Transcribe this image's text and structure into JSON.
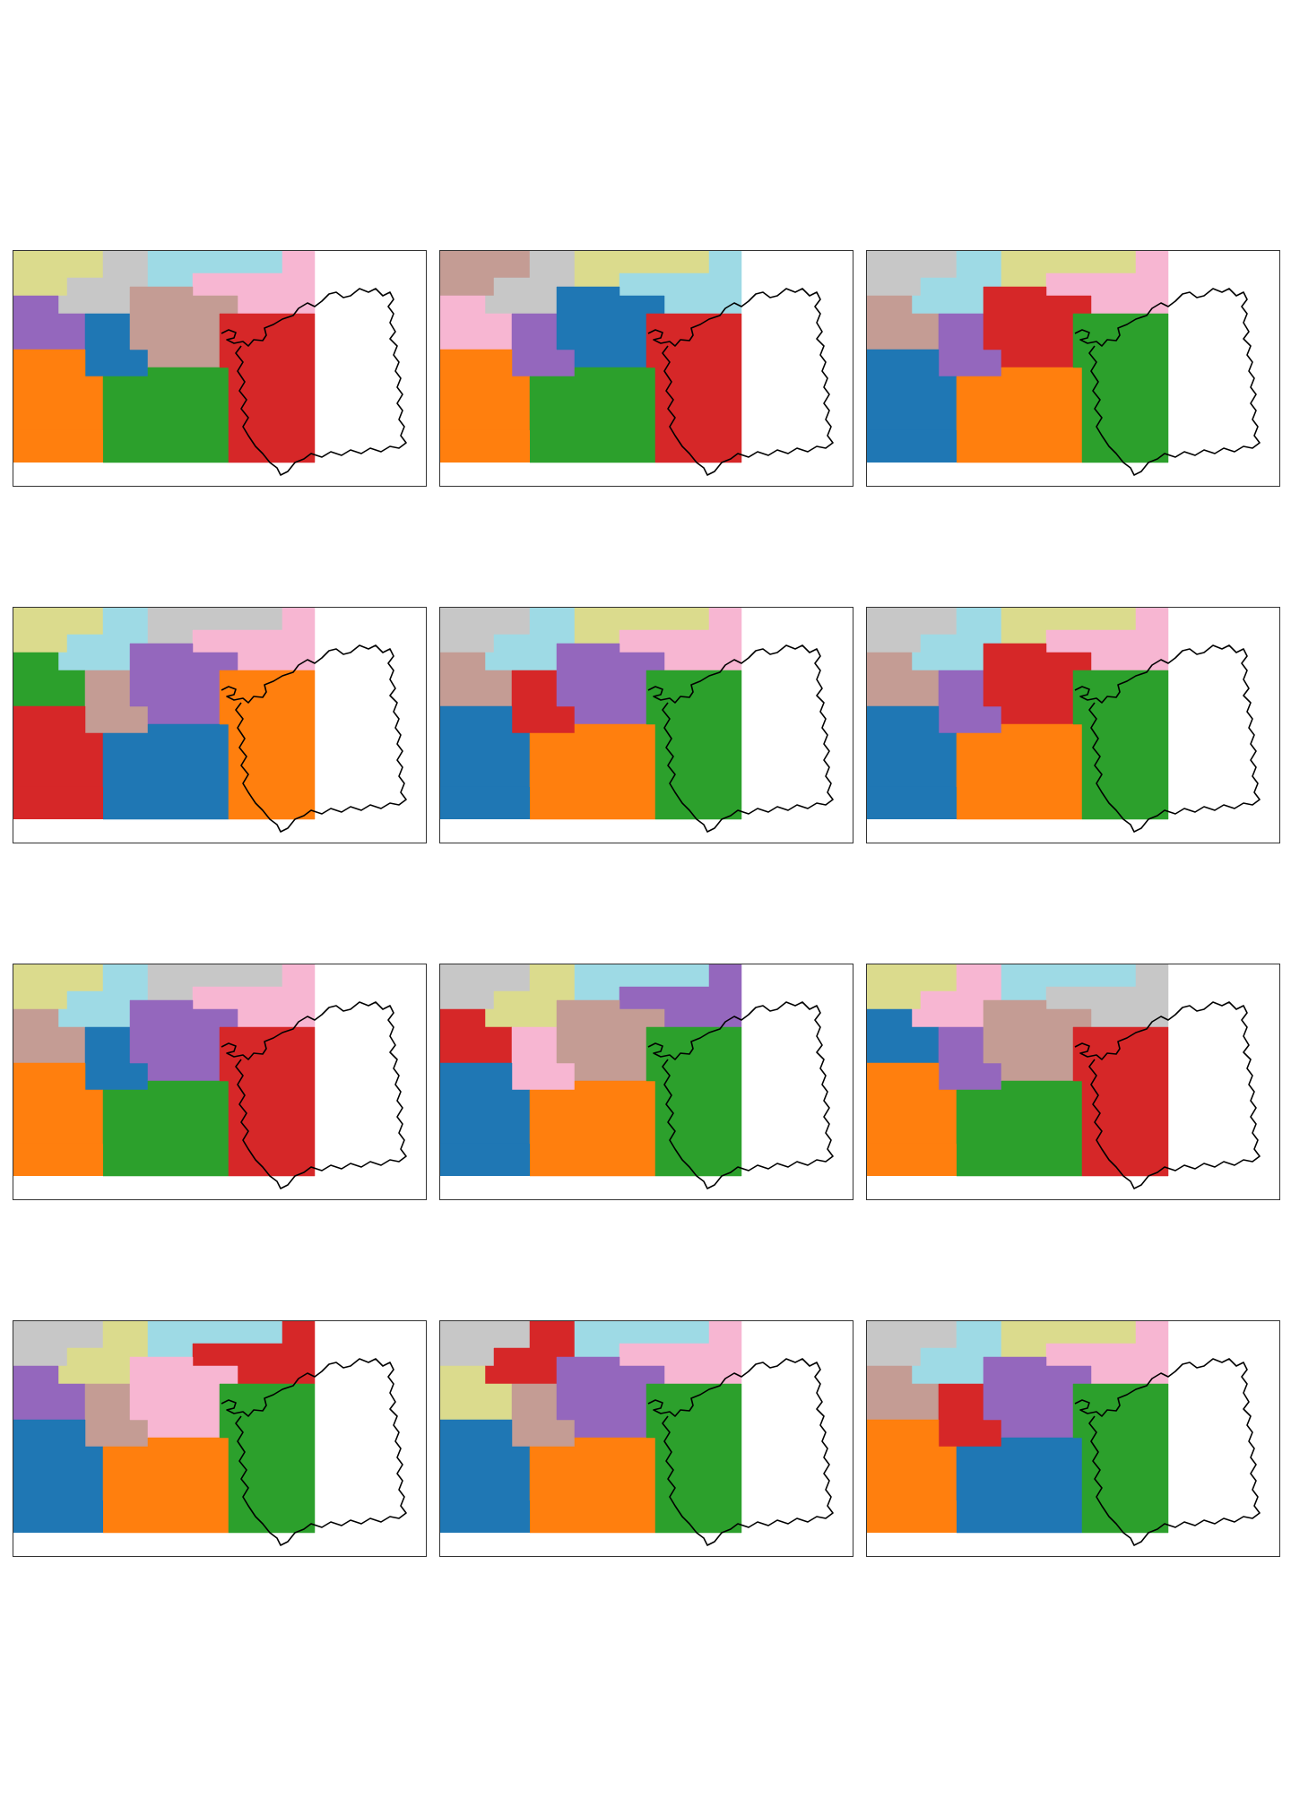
{
  "figure": {
    "layout": {
      "rows": 4,
      "columns": 3
    },
    "palette": {
      "blue": "#1f77b4",
      "orange": "#ff7f0e",
      "green": "#2ca02c",
      "red": "#d62728",
      "purple": "#9467bd",
      "brown": "#c49c94",
      "pink": "#f7b6d2",
      "gray": "#c7c7c7",
      "olive": "#dbdb8d",
      "cyan": "#9edae5"
    },
    "outline_color": "#000000",
    "panels": [
      {
        "name": "map-1-1",
        "regions": [
          "olive",
          "gray",
          "cyan",
          "pink",
          "purple",
          "blue",
          "brown",
          "orange",
          "green",
          "red"
        ]
      },
      {
        "name": "map-1-2",
        "regions": [
          "brown",
          "gray",
          "olive",
          "cyan",
          "pink",
          "purple",
          "blue",
          "orange",
          "green",
          "red"
        ]
      },
      {
        "name": "map-1-3",
        "regions": [
          "gray",
          "cyan",
          "olive",
          "pink",
          "brown",
          "purple",
          "red",
          "blue",
          "orange",
          "green"
        ]
      },
      {
        "name": "map-2-1",
        "regions": [
          "olive",
          "cyan",
          "gray",
          "pink",
          "green",
          "brown",
          "purple",
          "red",
          "blue",
          "orange"
        ]
      },
      {
        "name": "map-2-2",
        "regions": [
          "gray",
          "cyan",
          "olive",
          "pink",
          "brown",
          "red",
          "purple",
          "blue",
          "orange",
          "green"
        ]
      },
      {
        "name": "map-2-3",
        "regions": [
          "gray",
          "cyan",
          "olive",
          "pink",
          "brown",
          "purple",
          "red",
          "blue",
          "orange",
          "green"
        ]
      },
      {
        "name": "map-3-1",
        "regions": [
          "olive",
          "cyan",
          "gray",
          "pink",
          "brown",
          "blue",
          "purple",
          "orange",
          "green",
          "red"
        ]
      },
      {
        "name": "map-3-2",
        "regions": [
          "gray",
          "olive",
          "cyan",
          "purple",
          "red",
          "pink",
          "brown",
          "blue",
          "orange",
          "green"
        ]
      },
      {
        "name": "map-3-3",
        "regions": [
          "olive",
          "pink",
          "cyan",
          "gray",
          "blue",
          "purple",
          "brown",
          "orange",
          "green",
          "red"
        ]
      },
      {
        "name": "map-4-1",
        "regions": [
          "gray",
          "olive",
          "cyan",
          "red",
          "purple",
          "brown",
          "pink",
          "blue",
          "orange",
          "green"
        ]
      },
      {
        "name": "map-4-2",
        "regions": [
          "gray",
          "red",
          "cyan",
          "pink",
          "olive",
          "brown",
          "purple",
          "blue",
          "orange",
          "green"
        ]
      },
      {
        "name": "map-4-3",
        "regions": [
          "gray",
          "cyan",
          "olive",
          "pink",
          "brown",
          "red",
          "purple",
          "orange",
          "blue",
          "green"
        ]
      }
    ]
  }
}
